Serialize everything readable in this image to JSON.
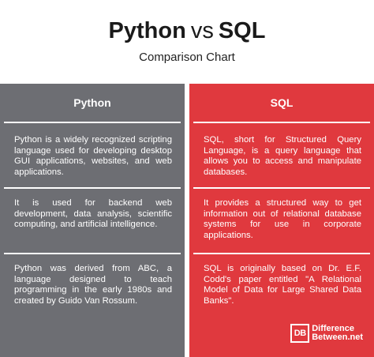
{
  "title": {
    "left": "Python",
    "vs": "vs",
    "right": "SQL"
  },
  "subtitle": "Comparison Chart",
  "columns": {
    "left": {
      "header": "Python",
      "color": "#6d6e73",
      "cells": [
        "Python is a widely recognized scripting language used for developing desktop GUI applications, websites, and web applications.",
        "It is used for backend web development, data analysis, scientific computing, and artificial intelligence.",
        "Python was derived from ABC, a language designed to teach programming in the early 1980s and created by Guido Van Rossum."
      ]
    },
    "right": {
      "header": "SQL",
      "color": "#e0393e",
      "cells": [
        "SQL, short for Structured Query Language, is a query language that allows you to access and manipulate databases.",
        "It provides a structured way to get information out of relational database systems for use in corporate applications.",
        "SQL is originally based on Dr. E.F. Codd's paper entitled \"A Relational Model of Data for Large Shared Data Banks\"."
      ]
    }
  },
  "logo": {
    "mark": "DB",
    "line1": "Difference",
    "line2": "Between.net"
  }
}
